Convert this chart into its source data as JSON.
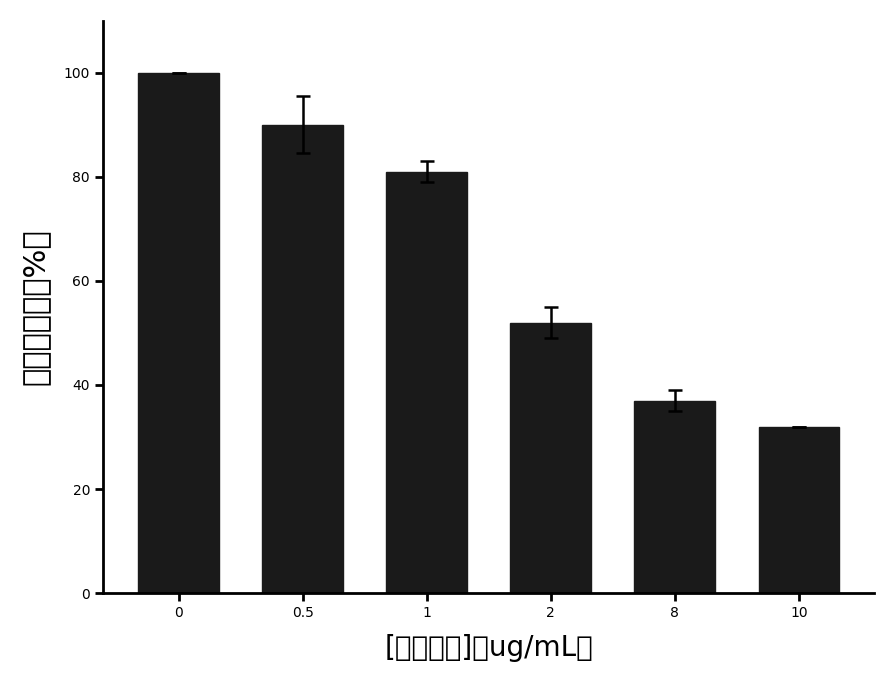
{
  "categories": [
    "0",
    "0.5",
    "1",
    "2",
    "8",
    "10"
  ],
  "values": [
    100,
    90,
    81,
    52,
    37,
    32
  ],
  "errors": [
    0,
    5.5,
    2.0,
    3.0,
    2.0,
    0
  ],
  "bar_color": "#1a1a1a",
  "bar_width": 0.65,
  "ylabel": "细胞存活率（%）",
  "xlabel": "[纳米粒子]（ug/mL）",
  "ylim": [
    0,
    110
  ],
  "yticks": [
    0,
    20,
    40,
    60,
    80,
    100
  ],
  "background_color": "#ffffff",
  "ylabel_fontsize": 22,
  "xlabel_fontsize": 20,
  "tick_fontsize": 18,
  "capsize": 5,
  "elinewidth": 1.8,
  "ecapthick": 1.8
}
